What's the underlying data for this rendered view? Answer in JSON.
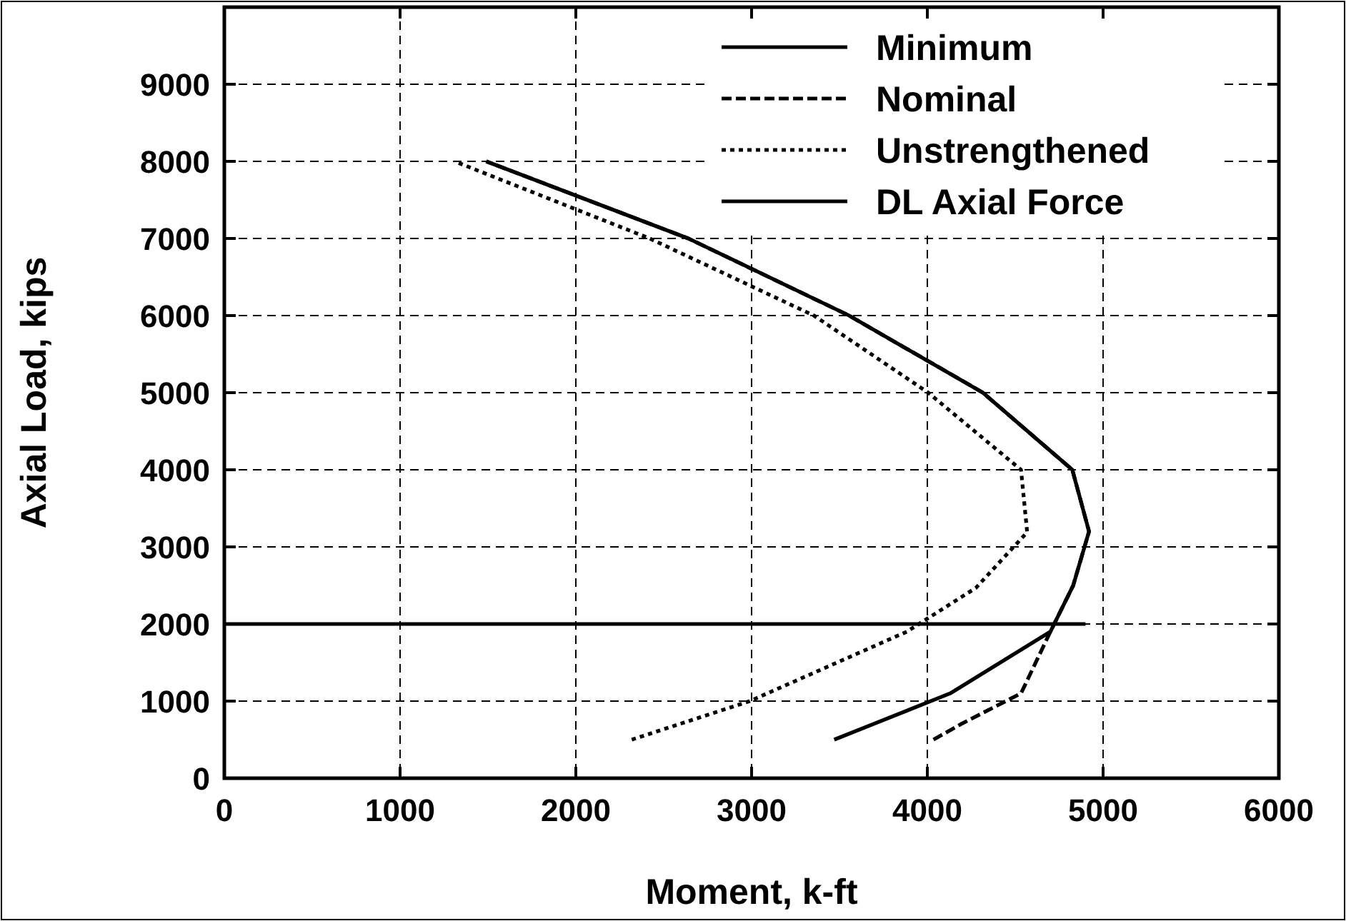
{
  "chart_data": {
    "type": "line",
    "xlabel": "Moment, k-ft",
    "ylabel": "Axial Load, kips",
    "xlim": [
      0,
      6000
    ],
    "xticks": [
      0,
      1000,
      2000,
      3000,
      4000,
      5000,
      6000
    ],
    "ylim": [
      0,
      10000
    ],
    "yticks": [
      0,
      1000,
      2000,
      3000,
      4000,
      5000,
      6000,
      7000,
      8000,
      9000
    ],
    "grid": true,
    "legend": "top right",
    "series": [
      {
        "name": "Minimum",
        "color": "#000000",
        "line_style": "solid",
        "x": [
          3470,
          4130,
          4700,
          4830,
          4920,
          4825,
          4316,
          3555,
          2640,
          1490
        ],
        "values": [
          500,
          1100,
          1900,
          2500,
          3200,
          4000,
          5000,
          6000,
          7000,
          8000
        ]
      },
      {
        "name": "Nominal",
        "color": "#000000",
        "line_style": "dashed",
        "x": [
          4035,
          4190,
          4533,
          4700,
          4830,
          4920,
          4825,
          4316,
          3555,
          2640,
          1490
        ],
        "values": [
          500,
          700,
          1100,
          1900,
          2500,
          3200,
          4000,
          5000,
          6000,
          7000,
          8000
        ]
      },
      {
        "name": "Unstrengthened",
        "color": "#000000",
        "line_style": "dotted",
        "x": [
          2318,
          2990,
          3883,
          4277,
          4568,
          4533,
          4005,
          3355,
          2420,
          1310
        ],
        "values": [
          500,
          1000,
          1900,
          2470,
          3190,
          4000,
          5000,
          6000,
          7000,
          8000
        ]
      },
      {
        "name": "DL Axial Force",
        "color": "#000000",
        "line_style": "solid",
        "x": [
          0,
          4900
        ],
        "values": [
          2000,
          2000
        ]
      }
    ]
  }
}
